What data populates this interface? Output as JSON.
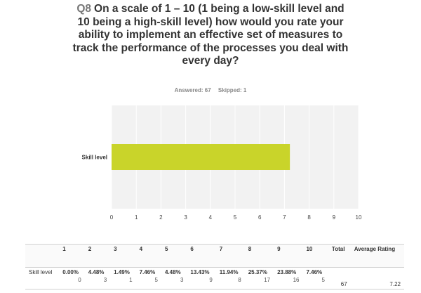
{
  "question": {
    "number": "Q8",
    "text": "On a scale of 1 – 10 (1 being a low-skill level and 10 being a high-skill level) how would you rate your ability to implement an effective set of measures to track the performance of the processes you deal with every day?"
  },
  "response_stats": {
    "answered": "Answered: 67",
    "skipped": "Skipped: 1"
  },
  "chart_data": {
    "type": "bar",
    "orientation": "horizontal",
    "categories": [
      "Skill level"
    ],
    "values": [
      7.22
    ],
    "xlim": [
      0,
      10
    ],
    "xticks": [
      "0",
      "1",
      "2",
      "3",
      "4",
      "5",
      "6",
      "7",
      "8",
      "9",
      "10"
    ],
    "grid": true,
    "bar_color": "#c9d42a"
  },
  "table": {
    "headers": [
      "",
      "1",
      "2",
      "3",
      "4",
      "5",
      "6",
      "7",
      "8",
      "9",
      "10",
      "Total",
      "Average Rating"
    ],
    "rows": [
      {
        "label": "Skill level",
        "cells": [
          {
            "pct": "0.00%",
            "count": "0"
          },
          {
            "pct": "4.48%",
            "count": "3"
          },
          {
            "pct": "1.49%",
            "count": "1"
          },
          {
            "pct": "7.46%",
            "count": "5"
          },
          {
            "pct": "4.48%",
            "count": "3"
          },
          {
            "pct": "13.43%",
            "count": "9"
          },
          {
            "pct": "11.94%",
            "count": "8"
          },
          {
            "pct": "25.37%",
            "count": "17"
          },
          {
            "pct": "23.88%",
            "count": "16"
          },
          {
            "pct": "7.46%",
            "count": "5"
          }
        ],
        "total": "67",
        "average": "7.22"
      }
    ]
  }
}
